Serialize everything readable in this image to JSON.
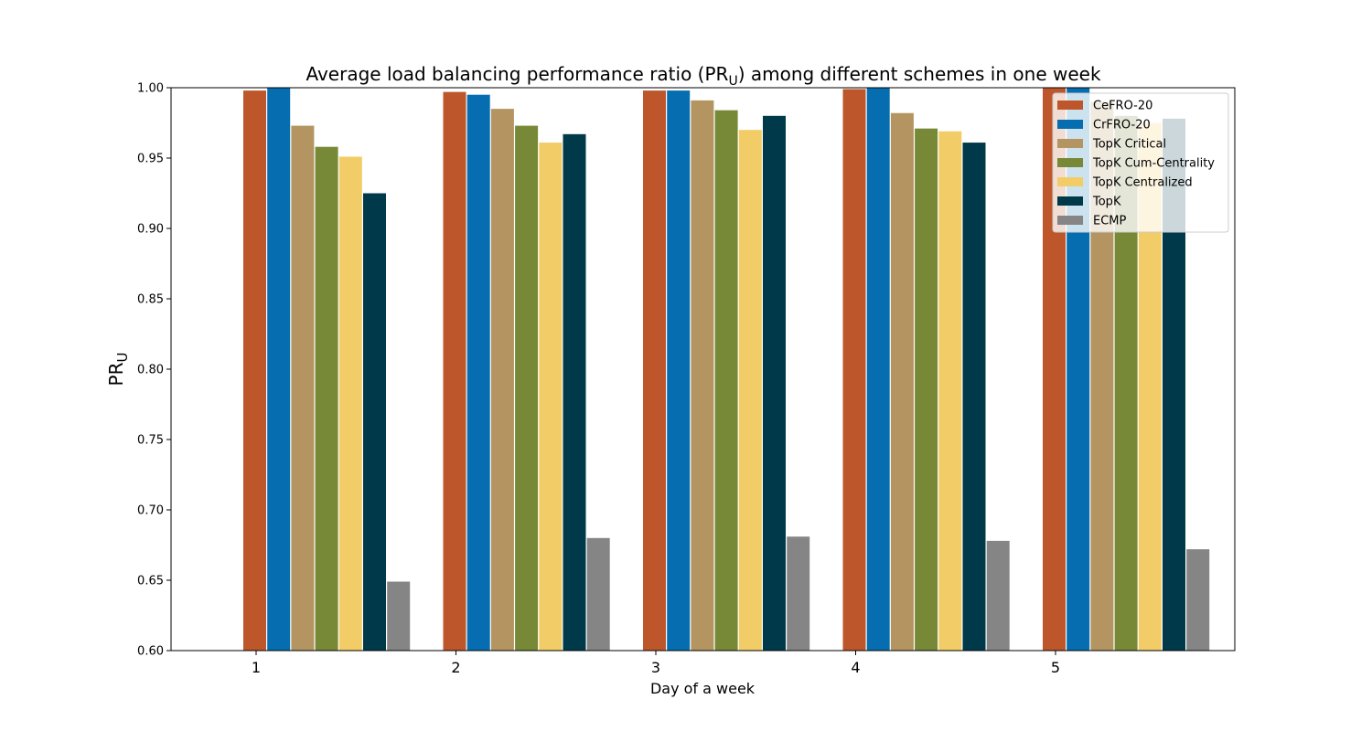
{
  "chart_data": {
    "type": "bar",
    "title": {
      "main": "Average load balancing performance ratio (PR",
      "sub": "U",
      "tail": ") among different schemes in one week"
    },
    "xlabel": "Day of a week",
    "ylabel": {
      "main": "PR",
      "sub": "U"
    },
    "categories": [
      "1",
      "2",
      "3",
      "4",
      "5"
    ],
    "ylim": [
      0.6,
      1.0
    ],
    "yticks": [
      "0.60",
      "0.65",
      "0.70",
      "0.75",
      "0.80",
      "0.85",
      "0.90",
      "0.95",
      "1.00"
    ],
    "grid": false,
    "legend_position": "top-right",
    "series": [
      {
        "name": "CeFRO-20",
        "color": "#bd572b",
        "values": [
          0.998,
          0.997,
          0.998,
          0.999,
          1.0
        ]
      },
      {
        "name": "CrFRO-20",
        "color": "#066eb0",
        "values": [
          1.0,
          0.995,
          0.998,
          1.0,
          1.0
        ]
      },
      {
        "name": "TopK Critical",
        "color": "#b49561",
        "values": [
          0.973,
          0.985,
          0.991,
          0.982,
          0.99
        ]
      },
      {
        "name": "TopK Cum-Centrality",
        "color": "#778937",
        "values": [
          0.958,
          0.973,
          0.984,
          0.971,
          0.98
        ]
      },
      {
        "name": "TopK Centralized",
        "color": "#f2cc66",
        "values": [
          0.951,
          0.961,
          0.97,
          0.969,
          0.975
        ]
      },
      {
        "name": "TopK",
        "color": "#003a4a",
        "values": [
          0.925,
          0.967,
          0.98,
          0.961,
          0.978
        ]
      },
      {
        "name": "ECMP",
        "color": "#858585",
        "values": [
          0.649,
          0.68,
          0.681,
          0.678,
          0.672
        ]
      }
    ]
  }
}
